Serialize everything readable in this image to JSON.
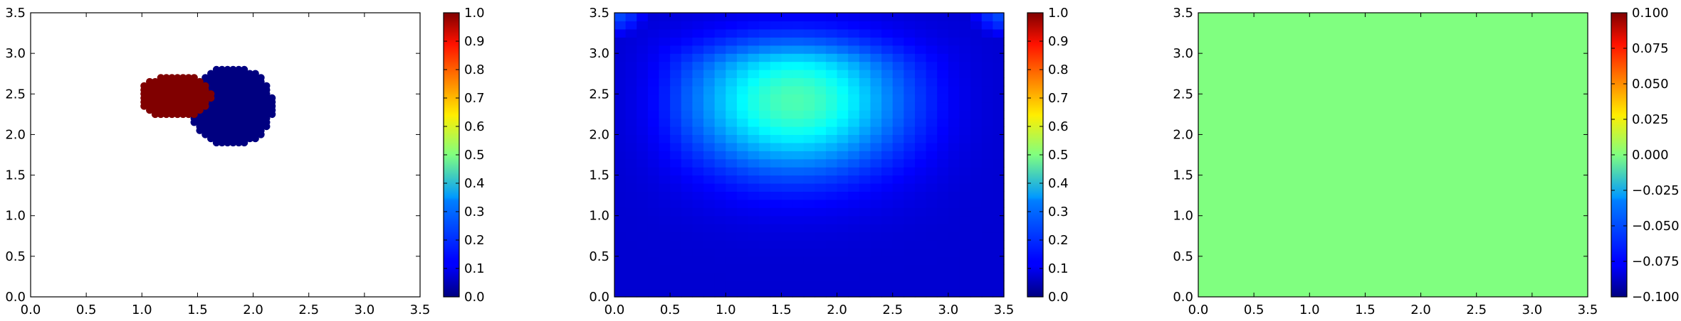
{
  "chart_data": [
    {
      "type": "scatter",
      "title": "",
      "xlabel": "",
      "ylabel": "",
      "xlim": [
        0.0,
        3.5
      ],
      "ylim": [
        0.0,
        3.5
      ],
      "xticks": [
        "0.0",
        "0.5",
        "1.0",
        "1.5",
        "2.0",
        "2.5",
        "3.0",
        "3.5"
      ],
      "yticks": [
        "0.0",
        "0.5",
        "1.0",
        "1.5",
        "2.0",
        "2.5",
        "3.0",
        "3.5"
      ],
      "colormap": "jet",
      "series": [
        {
          "name": "value 0 (blue blob)",
          "value": 0.0,
          "shape": "ellipse",
          "center": [
            1.8,
            2.35
          ],
          "radius": [
            0.38,
            0.5
          ],
          "spacing": 0.05
        },
        {
          "name": "value 1 (red blob)",
          "value": 1.0,
          "shape": "ellipse",
          "center": [
            1.3,
            2.47
          ],
          "radius": [
            0.33,
            0.27
          ],
          "spacing": 0.05
        }
      ],
      "colorbar": {
        "vmin": 0.0,
        "vmax": 1.0,
        "ticks": [
          "0.0",
          "0.1",
          "0.2",
          "0.3",
          "0.4",
          "0.5",
          "0.6",
          "0.7",
          "0.8",
          "0.9",
          "1.0"
        ]
      }
    },
    {
      "type": "heatmap",
      "title": "",
      "xlabel": "",
      "ylabel": "",
      "xlim": [
        0.0,
        3.5
      ],
      "ylim": [
        0.0,
        3.5
      ],
      "xticks": [
        "0.0",
        "0.5",
        "1.0",
        "1.5",
        "2.0",
        "2.5",
        "3.0",
        "3.5"
      ],
      "yticks": [
        "0.0",
        "0.5",
        "1.0",
        "1.5",
        "2.0",
        "2.5",
        "3.0",
        "3.5"
      ],
      "colormap": "jet",
      "field": {
        "peak_center": [
          1.62,
          2.42
        ],
        "peak_value": 0.45,
        "edge_value": 0.08,
        "corner_value": 0.2,
        "grid_size": 35
      },
      "colorbar": {
        "vmin": 0.0,
        "vmax": 1.0,
        "ticks": [
          "0.0",
          "0.1",
          "0.2",
          "0.3",
          "0.4",
          "0.5",
          "0.6",
          "0.7",
          "0.8",
          "0.9",
          "1.0"
        ]
      }
    },
    {
      "type": "heatmap",
      "title": "",
      "xlabel": "",
      "ylabel": "",
      "xlim": [
        0.0,
        3.5
      ],
      "ylim": [
        0.0,
        3.5
      ],
      "xticks": [
        "0.0",
        "0.5",
        "1.0",
        "1.5",
        "2.0",
        "2.5",
        "3.0",
        "3.5"
      ],
      "yticks": [
        "0.0",
        "0.5",
        "1.0",
        "1.5",
        "2.0",
        "2.5",
        "3.0",
        "3.5"
      ],
      "colormap": "jet",
      "field": {
        "constant_value": 0.0
      },
      "colorbar": {
        "vmin": -0.1,
        "vmax": 0.1,
        "ticks": [
          "−0.100",
          "−0.075",
          "−0.050",
          "−0.025",
          "0.000",
          "0.025",
          "0.050",
          "0.075",
          "0.100"
        ]
      }
    }
  ]
}
